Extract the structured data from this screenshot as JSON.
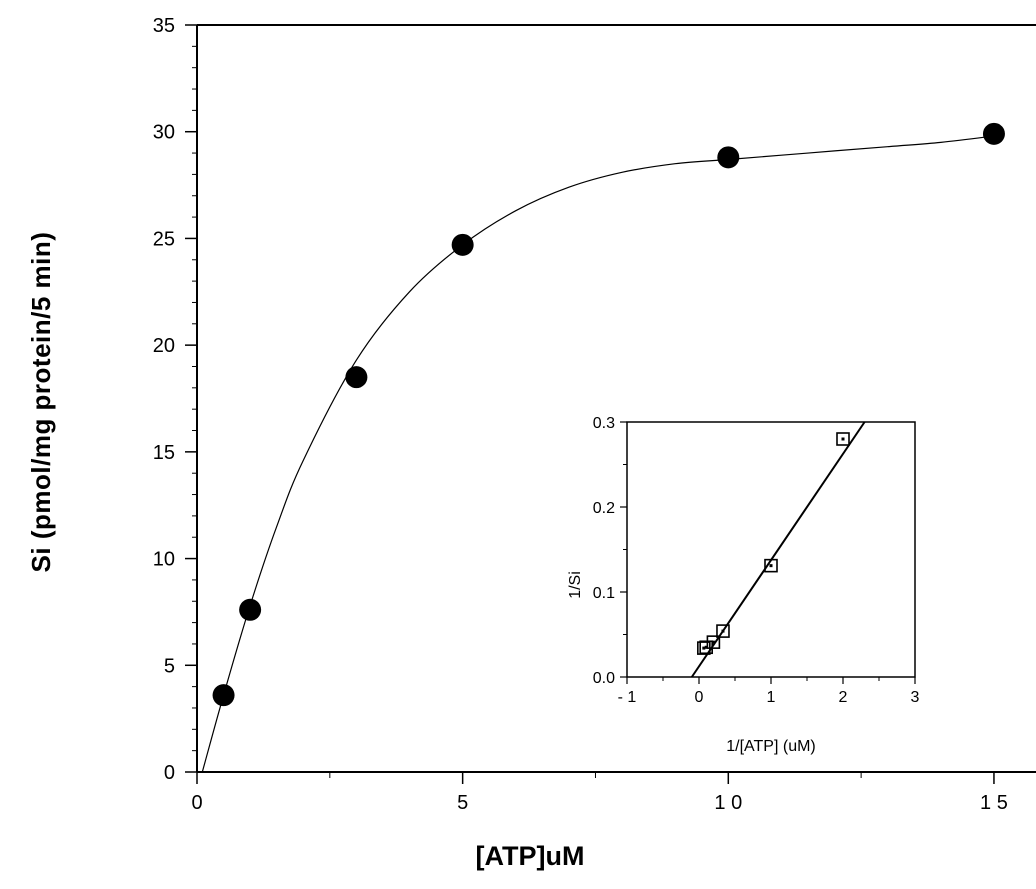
{
  "chart_data": [
    {
      "type": "scatter",
      "title": "",
      "xlabel": "[ATP]uM",
      "ylabel": "Si  (pmol/mg  protein/5  min)",
      "xlim": [
        0,
        16
      ],
      "ylim": [
        0,
        35
      ],
      "x_ticks": [
        0,
        5,
        10,
        15
      ],
      "x_tick_labels": [
        "0",
        "5",
        "1 0",
        "1 5"
      ],
      "y_ticks": [
        0,
        5,
        10,
        15,
        20,
        25,
        30,
        35
      ],
      "y_tick_labels": [
        "0",
        "5",
        "10",
        "15",
        "20",
        "25",
        "30",
        "35"
      ],
      "grid": false,
      "marker": "filled-circle",
      "points": [
        {
          "x": 0.5,
          "y": 3.6
        },
        {
          "x": 1.0,
          "y": 7.6
        },
        {
          "x": 3.0,
          "y": 18.5
        },
        {
          "x": 5.0,
          "y": 24.7
        },
        {
          "x": 10.0,
          "y": 28.8
        },
        {
          "x": 15.0,
          "y": 29.9
        }
      ],
      "fit_curve": {
        "x": [
          0.1,
          0.5,
          1.0,
          1.5,
          2.0,
          3.0,
          4.0,
          5.0,
          6.0,
          7.0,
          8.0,
          9.0,
          10.0,
          11.0,
          12.0,
          13.0,
          14.0,
          15.0
        ],
        "y": [
          0.0,
          3.6,
          7.8,
          11.5,
          14.6,
          19.3,
          22.5,
          24.7,
          26.3,
          27.4,
          28.1,
          28.5,
          28.7,
          28.9,
          29.1,
          29.3,
          29.5,
          29.8
        ]
      }
    },
    {
      "type": "scatter",
      "title": "",
      "xlabel": "1/[ATP] (uM)",
      "ylabel": "1/Si",
      "xlim": [
        -1,
        3
      ],
      "ylim": [
        0.0,
        0.3
      ],
      "x_ticks": [
        -1,
        0,
        1,
        2,
        3
      ],
      "x_tick_labels": [
        "- 1",
        "0",
        "1",
        "2",
        "3"
      ],
      "y_ticks": [
        0.0,
        0.1,
        0.2,
        0.3
      ],
      "y_tick_labels": [
        "0.0",
        "0.1",
        "0.2",
        "0.3"
      ],
      "grid": false,
      "marker": "open-square",
      "points": [
        {
          "x": 0.067,
          "y": 0.034
        },
        {
          "x": 0.1,
          "y": 0.035
        },
        {
          "x": 0.2,
          "y": 0.041
        },
        {
          "x": 0.333,
          "y": 0.054
        },
        {
          "x": 1.0,
          "y": 0.131
        },
        {
          "x": 2.0,
          "y": 0.28
        }
      ],
      "fit_line": {
        "x": [
          -0.1,
          2.3
        ],
        "y": [
          0.0,
          0.3
        ]
      }
    }
  ]
}
